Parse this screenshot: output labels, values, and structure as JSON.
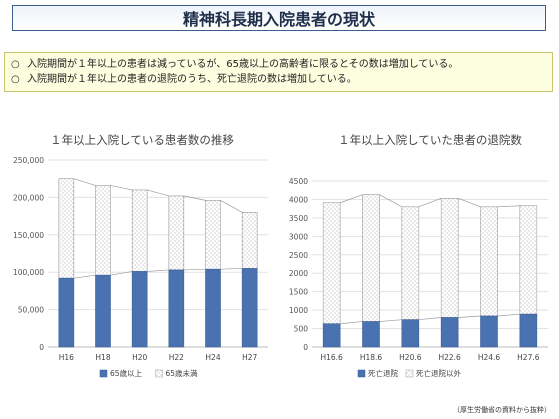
{
  "header": {
    "title": "精神科長期入院患者の現状"
  },
  "summary": {
    "mark": "○",
    "items": [
      "入院期間が１年以上の患者は減っているが、65歳以上の高齢者に限るとその数は増加している。",
      "入院期間が１年以上の患者の退院のうち、死亡退院の数は増加している。"
    ]
  },
  "source_note": "（厚生労働省の資料から抜粋）",
  "colors": {
    "blue": "#4a72b0",
    "dotted": "#ffffff",
    "connector": "#9a9a9a",
    "title_border": "#3a5f8f"
  },
  "chart_data": [
    {
      "type": "bar",
      "stacked": true,
      "title": "１年以上入院している患者数の推移",
      "categories": [
        "H16",
        "H18",
        "H20",
        "H22",
        "H24",
        "H27"
      ],
      "series": [
        {
          "name": "65歳以上",
          "values": [
            92000,
            96000,
            101000,
            103000,
            104000,
            105000
          ]
        },
        {
          "name": "65歳未満",
          "values": [
            133000,
            120000,
            109000,
            99000,
            92000,
            75000
          ]
        }
      ],
      "yticks": [
        "0",
        "50,000",
        "100,000",
        "150,000",
        "200,000",
        "250,000"
      ],
      "ylim": [
        0,
        250000
      ],
      "grid": true,
      "legend": "bottom"
    },
    {
      "type": "bar",
      "stacked": true,
      "title": "１年以上入院していた患者の退院数",
      "categories": [
        "H16.6",
        "H18.6",
        "H20.6",
        "H22.6",
        "H24.6",
        "H27.6"
      ],
      "series": [
        {
          "name": "死亡退院",
          "values": [
            630,
            690,
            740,
            800,
            840,
            890
          ]
        },
        {
          "name": "死亡退院以外",
          "values": [
            3280,
            3440,
            3060,
            3230,
            2960,
            2940
          ]
        }
      ],
      "yticks": [
        "0",
        "500",
        "1000",
        "1500",
        "2000",
        "2500",
        "3000",
        "3500",
        "4000",
        "4500"
      ],
      "ylim": [
        0,
        4500
      ],
      "grid": true,
      "legend": "bottom"
    }
  ]
}
